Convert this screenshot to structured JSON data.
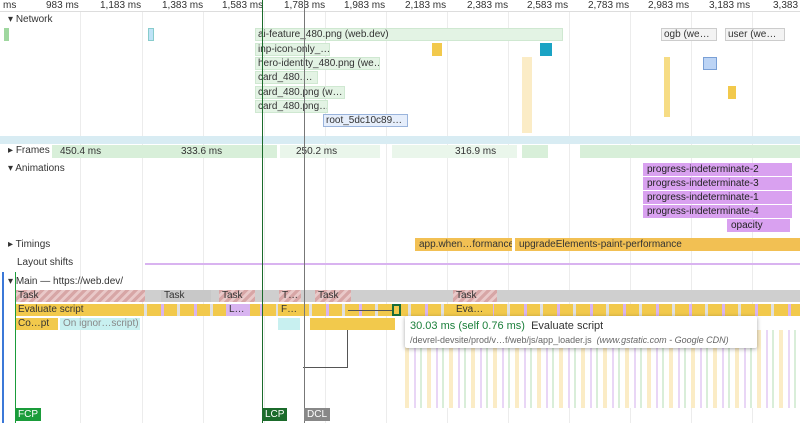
{
  "ruler": {
    "ticks": [
      "ms",
      "983 ms",
      "1,183 ms",
      "1,383 ms",
      "1,583 ms",
      "1,783 ms",
      "1,983 ms",
      "2,183 ms",
      "2,383 ms",
      "2,583 ms",
      "2,783 ms",
      "2,983 ms",
      "3,183 ms",
      "3,383"
    ]
  },
  "tracks": {
    "network": {
      "title": "Network",
      "requests": [
        "ai-feature_480.png (web.dev)",
        "inp-icon-only_…",
        "hero-identity_480.png (we…",
        "card_480.…",
        "card_480.png (w…",
        "card_480.png…",
        "root_5dc10c89…",
        "ogb (we…",
        "user (we…"
      ],
      "more": "…"
    },
    "frames": {
      "title": "Frames",
      "durations": [
        "450.4 ms",
        "333.6 ms",
        "250.2 ms",
        "316.9 ms"
      ]
    },
    "animations": {
      "title": "Animations",
      "items": [
        "progress-indeterminate-2",
        "progress-indeterminate-3",
        "progress-indeterminate-1",
        "progress-indeterminate-4",
        "opacity"
      ]
    },
    "timings": {
      "title": "Timings",
      "items": [
        "app.when…formance",
        "upgradeElements-paint-performance"
      ]
    },
    "layout_shifts": {
      "title": "Layout shifts"
    },
    "main": {
      "title": "Main — https://web.dev/",
      "tasks": [
        "Task",
        "Task",
        "Task",
        "T…",
        "Task",
        "Task"
      ],
      "scripts": [
        "Evaluate script",
        "L…",
        "F…",
        "Eva…"
      ],
      "sub": [
        "Co…pt",
        "On ignor…script)"
      ]
    }
  },
  "tooltip": {
    "duration": "30.03 ms",
    "self": "(self 0.76 ms)",
    "name": "Evaluate script",
    "url": "/devrel-devsite/prod/v…f/web/js/app_loader.js",
    "origin": "(www.gstatic.com - Google CDN)"
  },
  "markers": [
    "FCP",
    "LCP",
    "DCL"
  ]
}
